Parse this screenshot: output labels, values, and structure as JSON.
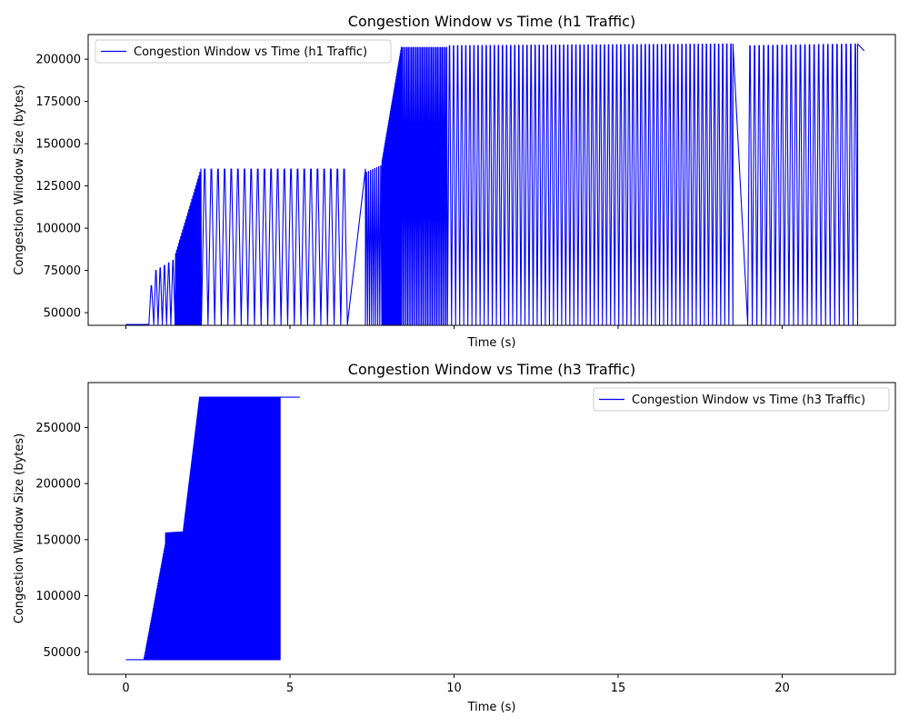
{
  "colors": {
    "series": "#0000ff",
    "axis": "#000000",
    "legend_border": "#cccccc",
    "background": "#ffffff"
  },
  "chart_data": [
    {
      "type": "line",
      "title": "Congestion Window vs Time (h1 Traffic)",
      "xlabel": "Time (s)",
      "ylabel": "Congestion Window Size (bytes)",
      "xlim": [
        -1.15,
        23.45
      ],
      "ylim": [
        42500,
        214600
      ],
      "xticks": [
        0,
        5,
        10,
        15,
        20
      ],
      "xtick_labels_visible": false,
      "yticks": [
        50000,
        75000,
        100000,
        125000,
        150000,
        175000,
        200000
      ],
      "ytick_labels": [
        "50000",
        "75000",
        "100000",
        "125000",
        "150000",
        "175000",
        "200000"
      ],
      "legend": {
        "location": "upper left",
        "entries": [
          "Congestion Window vs Time (h1 Traffic)"
        ]
      },
      "grid": false,
      "series": [
        {
          "name": "Congestion Window vs Time (h1 Traffic)",
          "phases": [
            {
              "x_start": 0.0,
              "x_end": 0.55,
              "kind": "flat",
              "value": 43000
            },
            {
              "x_start": 0.55,
              "x_end": 0.85,
              "kind": "sawtooth",
              "low": 43000,
              "high_start": 43000,
              "high_end": 66000,
              "cycles": 2
            },
            {
              "x_start": 0.85,
              "x_end": 1.5,
              "kind": "sawtooth",
              "low": 43000,
              "high_start": 75000,
              "high_end": 81000,
              "cycles": 5
            },
            {
              "x_start": 1.5,
              "x_end": 2.3,
              "kind": "sawtooth",
              "low": 43000,
              "high_start": 85000,
              "high_end": 135000,
              "cycles": 26
            },
            {
              "x_start": 2.3,
              "x_end": 6.75,
              "kind": "sawtooth",
              "low": 43000,
              "high_start": 135000,
              "high_end": 135000,
              "cycles": 22
            },
            {
              "x_start": 6.75,
              "x_end": 7.3,
              "kind": "linear",
              "from": 43000,
              "to": 135000
            },
            {
              "x_start": 7.3,
              "x_end": 7.8,
              "kind": "sawtooth",
              "low": 43000,
              "high_start": 133000,
              "high_end": 137000,
              "cycles": 8
            },
            {
              "x_start": 7.8,
              "x_end": 8.4,
              "kind": "sawtooth",
              "low": 43000,
              "high_start": 140000,
              "high_end": 207000,
              "cycles": 40
            },
            {
              "x_start": 8.4,
              "x_end": 9.8,
              "kind": "sawtooth",
              "low": 43000,
              "high_start": 207000,
              "high_end": 207000,
              "cycles": 30
            },
            {
              "x_start": 9.8,
              "x_end": 18.5,
              "kind": "sawtooth",
              "low": 43000,
              "high_start": 208000,
              "high_end": 209000,
              "cycles": 70
            },
            {
              "x_start": 18.5,
              "x_end": 18.95,
              "kind": "linear",
              "from": 209000,
              "to": 43000
            },
            {
              "x_start": 18.95,
              "x_end": 22.3,
              "kind": "sawtooth",
              "low": 43000,
              "high_start": 208000,
              "high_end": 209000,
              "cycles": 24
            },
            {
              "x_start": 22.3,
              "x_end": 22.5,
              "kind": "linear",
              "from": 209000,
              "to": 205000
            }
          ]
        }
      ]
    },
    {
      "type": "line",
      "title": "Congestion Window vs Time (h3 Traffic)",
      "xlabel": "Time (s)",
      "ylabel": "Congestion Window Size (bytes)",
      "xlim": [
        -1.15,
        23.45
      ],
      "ylim": [
        30000,
        290000
      ],
      "xticks": [
        0,
        5,
        10,
        15,
        20
      ],
      "xtick_labels": [
        "0",
        "5",
        "10",
        "15",
        "20"
      ],
      "yticks": [
        50000,
        100000,
        150000,
        200000,
        250000
      ],
      "ytick_labels": [
        "50000",
        "100000",
        "150000",
        "200000",
        "250000"
      ],
      "legend": {
        "location": "upper right",
        "entries": [
          "Congestion Window vs Time (h3 Traffic)"
        ]
      },
      "grid": false,
      "series": [
        {
          "name": "Congestion Window vs Time (h3 Traffic)",
          "phases": [
            {
              "x_start": 0.0,
              "x_end": 0.55,
              "kind": "flat",
              "value": 43000
            },
            {
              "x_start": 0.55,
              "x_end": 1.2,
              "kind": "sawtooth",
              "low": 43000,
              "high_start": 45000,
              "high_end": 145000,
              "cycles": 40
            },
            {
              "x_start": 1.2,
              "x_end": 1.75,
              "kind": "sawtooth",
              "low": 43000,
              "high_start": 156000,
              "high_end": 157000,
              "cycles": 30
            },
            {
              "x_start": 1.75,
              "x_end": 2.25,
              "kind": "sawtooth",
              "low": 43000,
              "high_start": 160000,
              "high_end": 277000,
              "cycles": 60
            },
            {
              "x_start": 2.25,
              "x_end": 4.7,
              "kind": "sawtooth",
              "low": 43000,
              "high_start": 277000,
              "high_end": 277000,
              "cycles": 240
            },
            {
              "x_start": 4.7,
              "x_end": 5.3,
              "kind": "flat",
              "value": 277000
            }
          ]
        }
      ]
    }
  ]
}
